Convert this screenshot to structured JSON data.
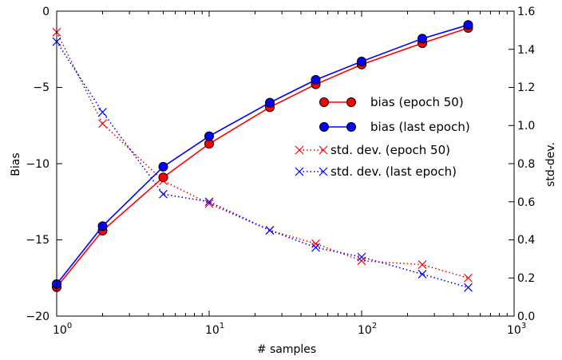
{
  "chart_data": {
    "type": "line",
    "title": "",
    "xlabel": "# samples",
    "ylabel_left": "Bias",
    "ylabel_right": "std-dev.",
    "x_scale": "log",
    "xlim": [
      1,
      1000
    ],
    "x_ticks": [
      {
        "base": "10",
        "exp": "0"
      },
      {
        "base": "10",
        "exp": "1"
      },
      {
        "base": "10",
        "exp": "2"
      },
      {
        "base": "10",
        "exp": "3"
      }
    ],
    "y_left_lim": [
      -20,
      0
    ],
    "y_left_ticks": [
      "0",
      "−5",
      "−10",
      "−15",
      "−20"
    ],
    "y_right_lim": [
      0.0,
      1.6
    ],
    "y_right_ticks": [
      "0.0",
      "0.2",
      "0.4",
      "0.6",
      "0.8",
      "1.0",
      "1.2",
      "1.4",
      "1.6"
    ],
    "grid": false,
    "legend_position": "center-right",
    "x": [
      1,
      2,
      5,
      10,
      25,
      50,
      100,
      250,
      500
    ],
    "series": [
      {
        "name": "bias (epoch 50)",
        "axis": "left",
        "style": "solid-circle",
        "color": "#ff0000",
        "values": [
          -18.1,
          -14.4,
          -10.9,
          -8.7,
          -6.3,
          -4.8,
          -3.5,
          -2.1,
          -1.1
        ]
      },
      {
        "name": "bias (last epoch)",
        "axis": "left",
        "style": "solid-circle",
        "color": "#0000ff",
        "values": [
          -17.9,
          -14.1,
          -10.2,
          -8.2,
          -6.0,
          -4.5,
          -3.3,
          -1.8,
          -0.9
        ]
      },
      {
        "name": "std. dev. (epoch 50)",
        "axis": "right",
        "style": "dotted-x",
        "color": "#ff0000",
        "values": [
          1.49,
          1.01,
          0.71,
          0.59,
          0.45,
          0.38,
          0.29,
          0.27,
          0.2
        ]
      },
      {
        "name": "std. dev. (last epoch)",
        "axis": "right",
        "style": "dotted-x",
        "color": "#0000ff",
        "values": [
          1.44,
          1.07,
          0.64,
          0.6,
          0.45,
          0.36,
          0.31,
          0.22,
          0.15
        ]
      }
    ]
  }
}
